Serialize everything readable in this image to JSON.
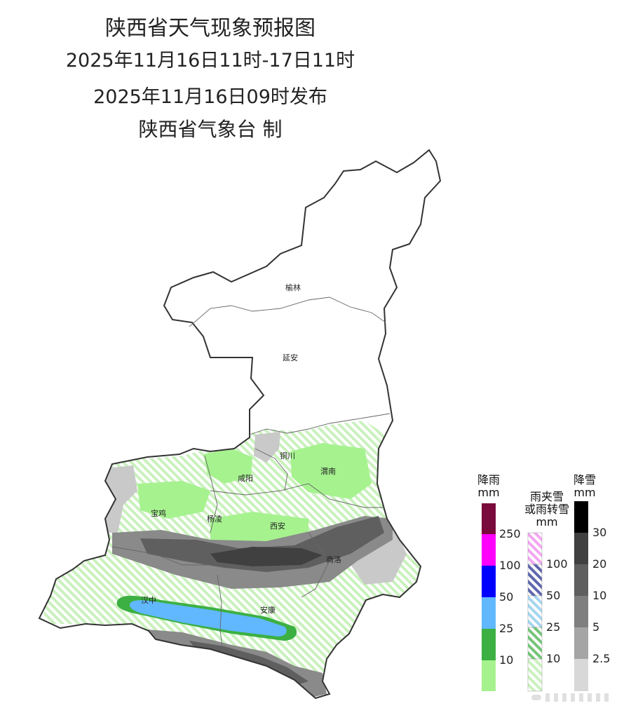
{
  "title": {
    "line1": "陕西省天气现象预报图",
    "line2": "2025年11月16日11时-17日11时",
    "line3": "2025年11月16日09时发布",
    "line4": "陕西省气象台 制"
  },
  "cities": [
    "榆林",
    "延安",
    "铜川",
    "咸阳",
    "渭南",
    "宝鸡",
    "杨凌",
    "西安",
    "商洛",
    "汉中",
    "安康"
  ],
  "legend": {
    "rain": {
      "title": "降雨",
      "unit": "mm",
      "thresholds": [
        "250",
        "100",
        "50",
        "25",
        "10"
      ],
      "colors": [
        "#7a0a3c",
        "#ff00ff",
        "#0000ff",
        "#61b8ff",
        "#3cb043",
        "#a6f28f"
      ]
    },
    "sleet": {
      "title1": "雨夹雪",
      "title2": "或雨转雪",
      "unit": "mm",
      "thresholds": [
        "100",
        "50",
        "25",
        "10"
      ]
    },
    "snow": {
      "title": "降雪",
      "unit": "mm",
      "thresholds": [
        "30",
        "20",
        "10",
        "5",
        "2.5"
      ],
      "colors": [
        "#000000",
        "#404040",
        "#5f5f5f",
        "#7f7f7f",
        "#a5a5a5",
        "#d8d8d8"
      ]
    }
  }
}
